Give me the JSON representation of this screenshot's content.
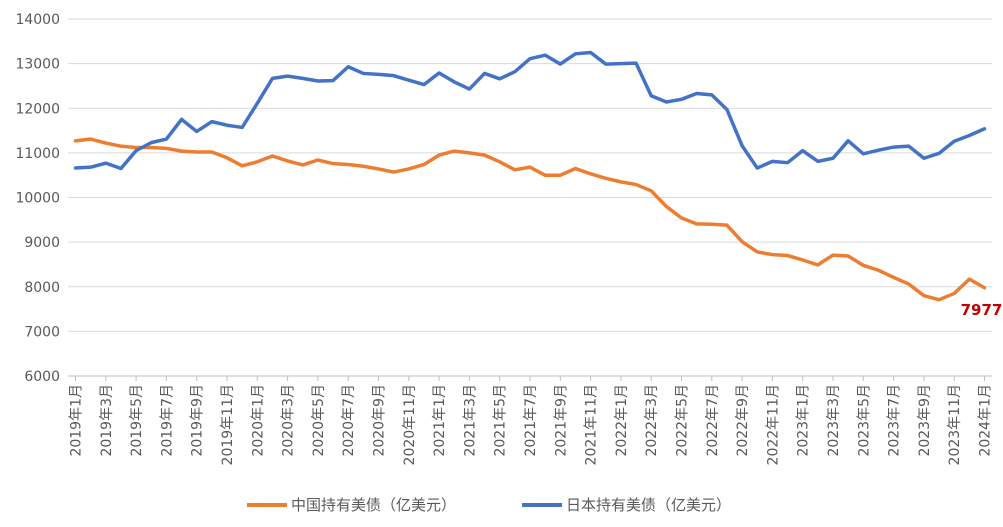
{
  "chart_data": {
    "type": "line",
    "title": "",
    "xlabel": "",
    "ylabel": "",
    "ylim": [
      6000,
      14000
    ],
    "yticks": [
      6000,
      7000,
      8000,
      9000,
      10000,
      11000,
      12000,
      13000,
      14000
    ],
    "grid": true,
    "legend_position": "bottom",
    "categories": [
      "2019年1月",
      "2019年2月",
      "2019年3月",
      "2019年4月",
      "2019年5月",
      "2019年6月",
      "2019年7月",
      "2019年8月",
      "2019年9月",
      "2019年10月",
      "2019年11月",
      "2019年12月",
      "2020年1月",
      "2020年2月",
      "2020年3月",
      "2020年4月",
      "2020年5月",
      "2020年6月",
      "2020年7月",
      "2020年8月",
      "2020年9月",
      "2020年10月",
      "2020年11月",
      "2020年12月",
      "2021年1月",
      "2021年2月",
      "2021年3月",
      "2021年4月",
      "2021年5月",
      "2021年6月",
      "2021年7月",
      "2021年8月",
      "2021年9月",
      "2021年10月",
      "2021年11月",
      "2021年12月",
      "2022年1月",
      "2022年2月",
      "2022年3月",
      "2022年4月",
      "2022年5月",
      "2022年6月",
      "2022年7月",
      "2022年8月",
      "2022年9月",
      "2022年10月",
      "2022年11月",
      "2022年12月",
      "2023年1月",
      "2023年2月",
      "2023年3月",
      "2023年4月",
      "2023年5月",
      "2023年6月",
      "2023年7月",
      "2023年8月",
      "2023年9月",
      "2023年10月",
      "2023年11月",
      "2023年12月",
      "2024年1月"
    ],
    "tick_labels": [
      "2019年1月",
      "2019年3月",
      "2019年5月",
      "2019年7月",
      "2019年9月",
      "2019年11月",
      "2020年1月",
      "2020年3月",
      "2020年5月",
      "2020年7月",
      "2020年9月",
      "2020年11月",
      "2021年1月",
      "2021年3月",
      "2021年5月",
      "2021年7月",
      "2021年9月",
      "2021年11月",
      "2022年1月",
      "2022年3月",
      "2022年5月",
      "2022年7月",
      "2022年9月",
      "2022年11月",
      "2023年1月",
      "2023年3月",
      "2023年5月",
      "2023年7月",
      "2023年9月",
      "2023年11月",
      "2024年1月"
    ],
    "series": [
      {
        "name": "中国持有美债（亿美元）",
        "color": "#ED7D31",
        "values": [
          11270,
          11310,
          11220,
          11150,
          11120,
          11120,
          11100,
          11040,
          11020,
          11020,
          10890,
          10710,
          10800,
          10930,
          10820,
          10730,
          10840,
          10760,
          10740,
          10700,
          10640,
          10570,
          10640,
          10740,
          10950,
          11040,
          11000,
          10950,
          10800,
          10620,
          10680,
          10500,
          10500,
          10650,
          10530,
          10430,
          10350,
          10290,
          10150,
          9800,
          9540,
          9410,
          9400,
          9380,
          9010,
          8780,
          8720,
          8700,
          8600,
          8490,
          8710,
          8690,
          8480,
          8370,
          8210,
          8060,
          7800,
          7710,
          7850,
          8170,
          7977
        ]
      },
      {
        "name": "日本持有美债（亿美元）",
        "color": "#4472C4",
        "values": [
          10660,
          10680,
          10770,
          10650,
          11050,
          11230,
          11310,
          11750,
          11480,
          11700,
          11620,
          11570,
          12110,
          12670,
          12720,
          12670,
          12610,
          12620,
          12930,
          12780,
          12760,
          12730,
          12630,
          12530,
          12790,
          12590,
          12430,
          12780,
          12660,
          12820,
          13110,
          13190,
          12990,
          13220,
          13250,
          12990,
          13000,
          13010,
          12280,
          12140,
          12200,
          12330,
          12300,
          11970,
          11160,
          10660,
          10810,
          10780,
          11050,
          10810,
          10880,
          11270,
          10980,
          11060,
          11130,
          11150,
          10880,
          10990,
          11260,
          11390,
          11540
        ]
      }
    ],
    "annotations": [
      {
        "series": 0,
        "index": 60,
        "text": "7977",
        "color": "#C00000"
      }
    ]
  }
}
